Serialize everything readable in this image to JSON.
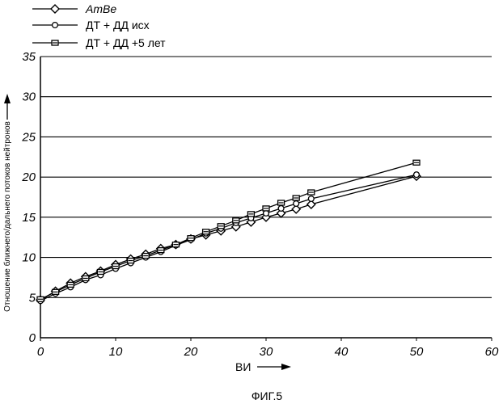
{
  "chart_data": {
    "type": "line",
    "xlabel": "ВИ",
    "ylabel": "Отношение ближнего/дальнего потоков нейтронов",
    "caption": "ФИГ.5",
    "xlim": [
      0,
      60
    ],
    "ylim": [
      0,
      35
    ],
    "x_ticks": [
      "0",
      "10",
      "20",
      "30",
      "40",
      "50",
      "60"
    ],
    "y_ticks": [
      "0",
      "5",
      "10",
      "15",
      "20",
      "25",
      "30",
      "35"
    ],
    "grid": "horizontal",
    "legend_position": "top-left",
    "series": [
      {
        "name": "AmBe",
        "marker": "diamond",
        "points": [
          [
            0,
            4.7
          ],
          [
            2,
            5.8
          ],
          [
            4,
            6.8
          ],
          [
            6,
            7.6
          ],
          [
            8,
            8.3
          ],
          [
            10,
            9.1
          ],
          [
            12,
            9.8
          ],
          [
            14,
            10.4
          ],
          [
            16,
            11.1
          ],
          [
            18,
            11.6
          ],
          [
            20,
            12.3
          ],
          [
            22,
            12.8
          ],
          [
            24,
            13.3
          ],
          [
            26,
            13.8
          ],
          [
            28,
            14.4
          ],
          [
            30,
            15.0
          ],
          [
            32,
            15.5
          ],
          [
            34,
            16.0
          ],
          [
            36,
            16.6
          ],
          [
            50,
            20.1
          ]
        ]
      },
      {
        "name": "ДТ + ДД исх",
        "marker": "circle",
        "points": [
          [
            0,
            4.6
          ],
          [
            2,
            5.5
          ],
          [
            4,
            6.3
          ],
          [
            6,
            7.2
          ],
          [
            8,
            7.8
          ],
          [
            10,
            8.6
          ],
          [
            12,
            9.3
          ],
          [
            14,
            10.0
          ],
          [
            16,
            10.7
          ],
          [
            18,
            11.5
          ],
          [
            20,
            12.2
          ],
          [
            22,
            13.0
          ],
          [
            24,
            13.6
          ],
          [
            26,
            14.3
          ],
          [
            28,
            14.9
          ],
          [
            30,
            15.5
          ],
          [
            32,
            16.1
          ],
          [
            34,
            16.7
          ],
          [
            36,
            17.3
          ],
          [
            50,
            20.3
          ]
        ]
      },
      {
        "name": "ДТ + ДД +5 лет",
        "marker": "square",
        "points": [
          [
            0,
            4.8
          ],
          [
            2,
            5.7
          ],
          [
            4,
            6.6
          ],
          [
            6,
            7.4
          ],
          [
            8,
            8.2
          ],
          [
            10,
            8.9
          ],
          [
            12,
            9.6
          ],
          [
            14,
            10.2
          ],
          [
            16,
            10.9
          ],
          [
            18,
            11.6
          ],
          [
            20,
            12.4
          ],
          [
            22,
            13.2
          ],
          [
            24,
            13.9
          ],
          [
            26,
            14.6
          ],
          [
            28,
            15.4
          ],
          [
            30,
            16.1
          ],
          [
            32,
            16.8
          ],
          [
            34,
            17.4
          ],
          [
            36,
            18.1
          ],
          [
            50,
            21.8
          ]
        ]
      }
    ]
  }
}
